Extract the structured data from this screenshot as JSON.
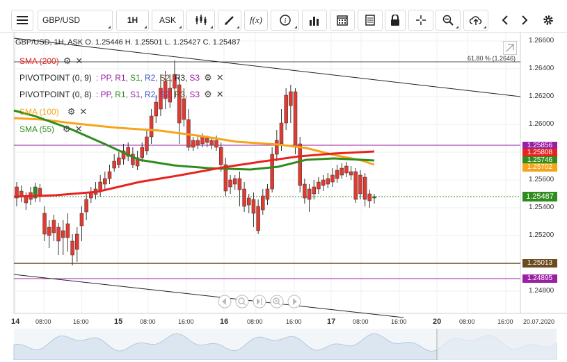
{
  "toolbar": {
    "symbol": "GBP/USD",
    "timeframe": "1H",
    "price_type": "ASK",
    "fx_label": "f(x)"
  },
  "header": {
    "ohlc": "GBP/USD, 1H, ASK    O. 1.25446 H. 1.25501 L. 1.25427 C. 1.25487"
  },
  "indicators": {
    "sma200": "SMA (200)",
    "pivot1_name": "PIVOTPOINT (0, 9)",
    "pivot1_params": [
      ": PP,",
      "R1,",
      "S1,",
      "R2,",
      "S2,",
      "R3,",
      "S3"
    ],
    "pivot2_name": "PIVOTPOINT (0, 8)",
    "pivot2_params": [
      ": PP,",
      "R1,",
      "S1,",
      "R2,",
      "S2,",
      "R3,",
      "S3"
    ],
    "sma100": "SMA (100)",
    "sma55": "SMA (55)"
  },
  "annotations": {
    "fib": "61.80 % (1.2646)"
  },
  "price_axis": [
    "1.26600",
    "1.26400",
    "1.26200",
    "1.26000",
    "1.25800",
    "1.25600",
    "1.25400",
    "1.25200",
    "1.25000",
    "1.24800"
  ],
  "price_labels": {
    "p1": "1.25856",
    "p2": "1.25808",
    "p3": "1.25746",
    "p4": "1.25702",
    "current": "1.25487",
    "p6": "1.25013",
    "p7": "1.24895"
  },
  "time_axis": [
    "14",
    "08:00",
    "16:00",
    "15",
    "08:00",
    "16:00",
    "16",
    "08:00",
    "16:00",
    "17",
    "08:00",
    "16:00",
    "20",
    "08:00",
    "16:00",
    "20.07.2020"
  ],
  "colors": {
    "sma200": "#e8231f",
    "sma100": "#f5a51a",
    "sma55": "#2f8c1e",
    "bull": "#2f8c1e",
    "bear": "#e03b31",
    "pivot_purple": "#9b1fa3",
    "brown": "#6b4a1d",
    "current": "#2f8c1e"
  }
}
